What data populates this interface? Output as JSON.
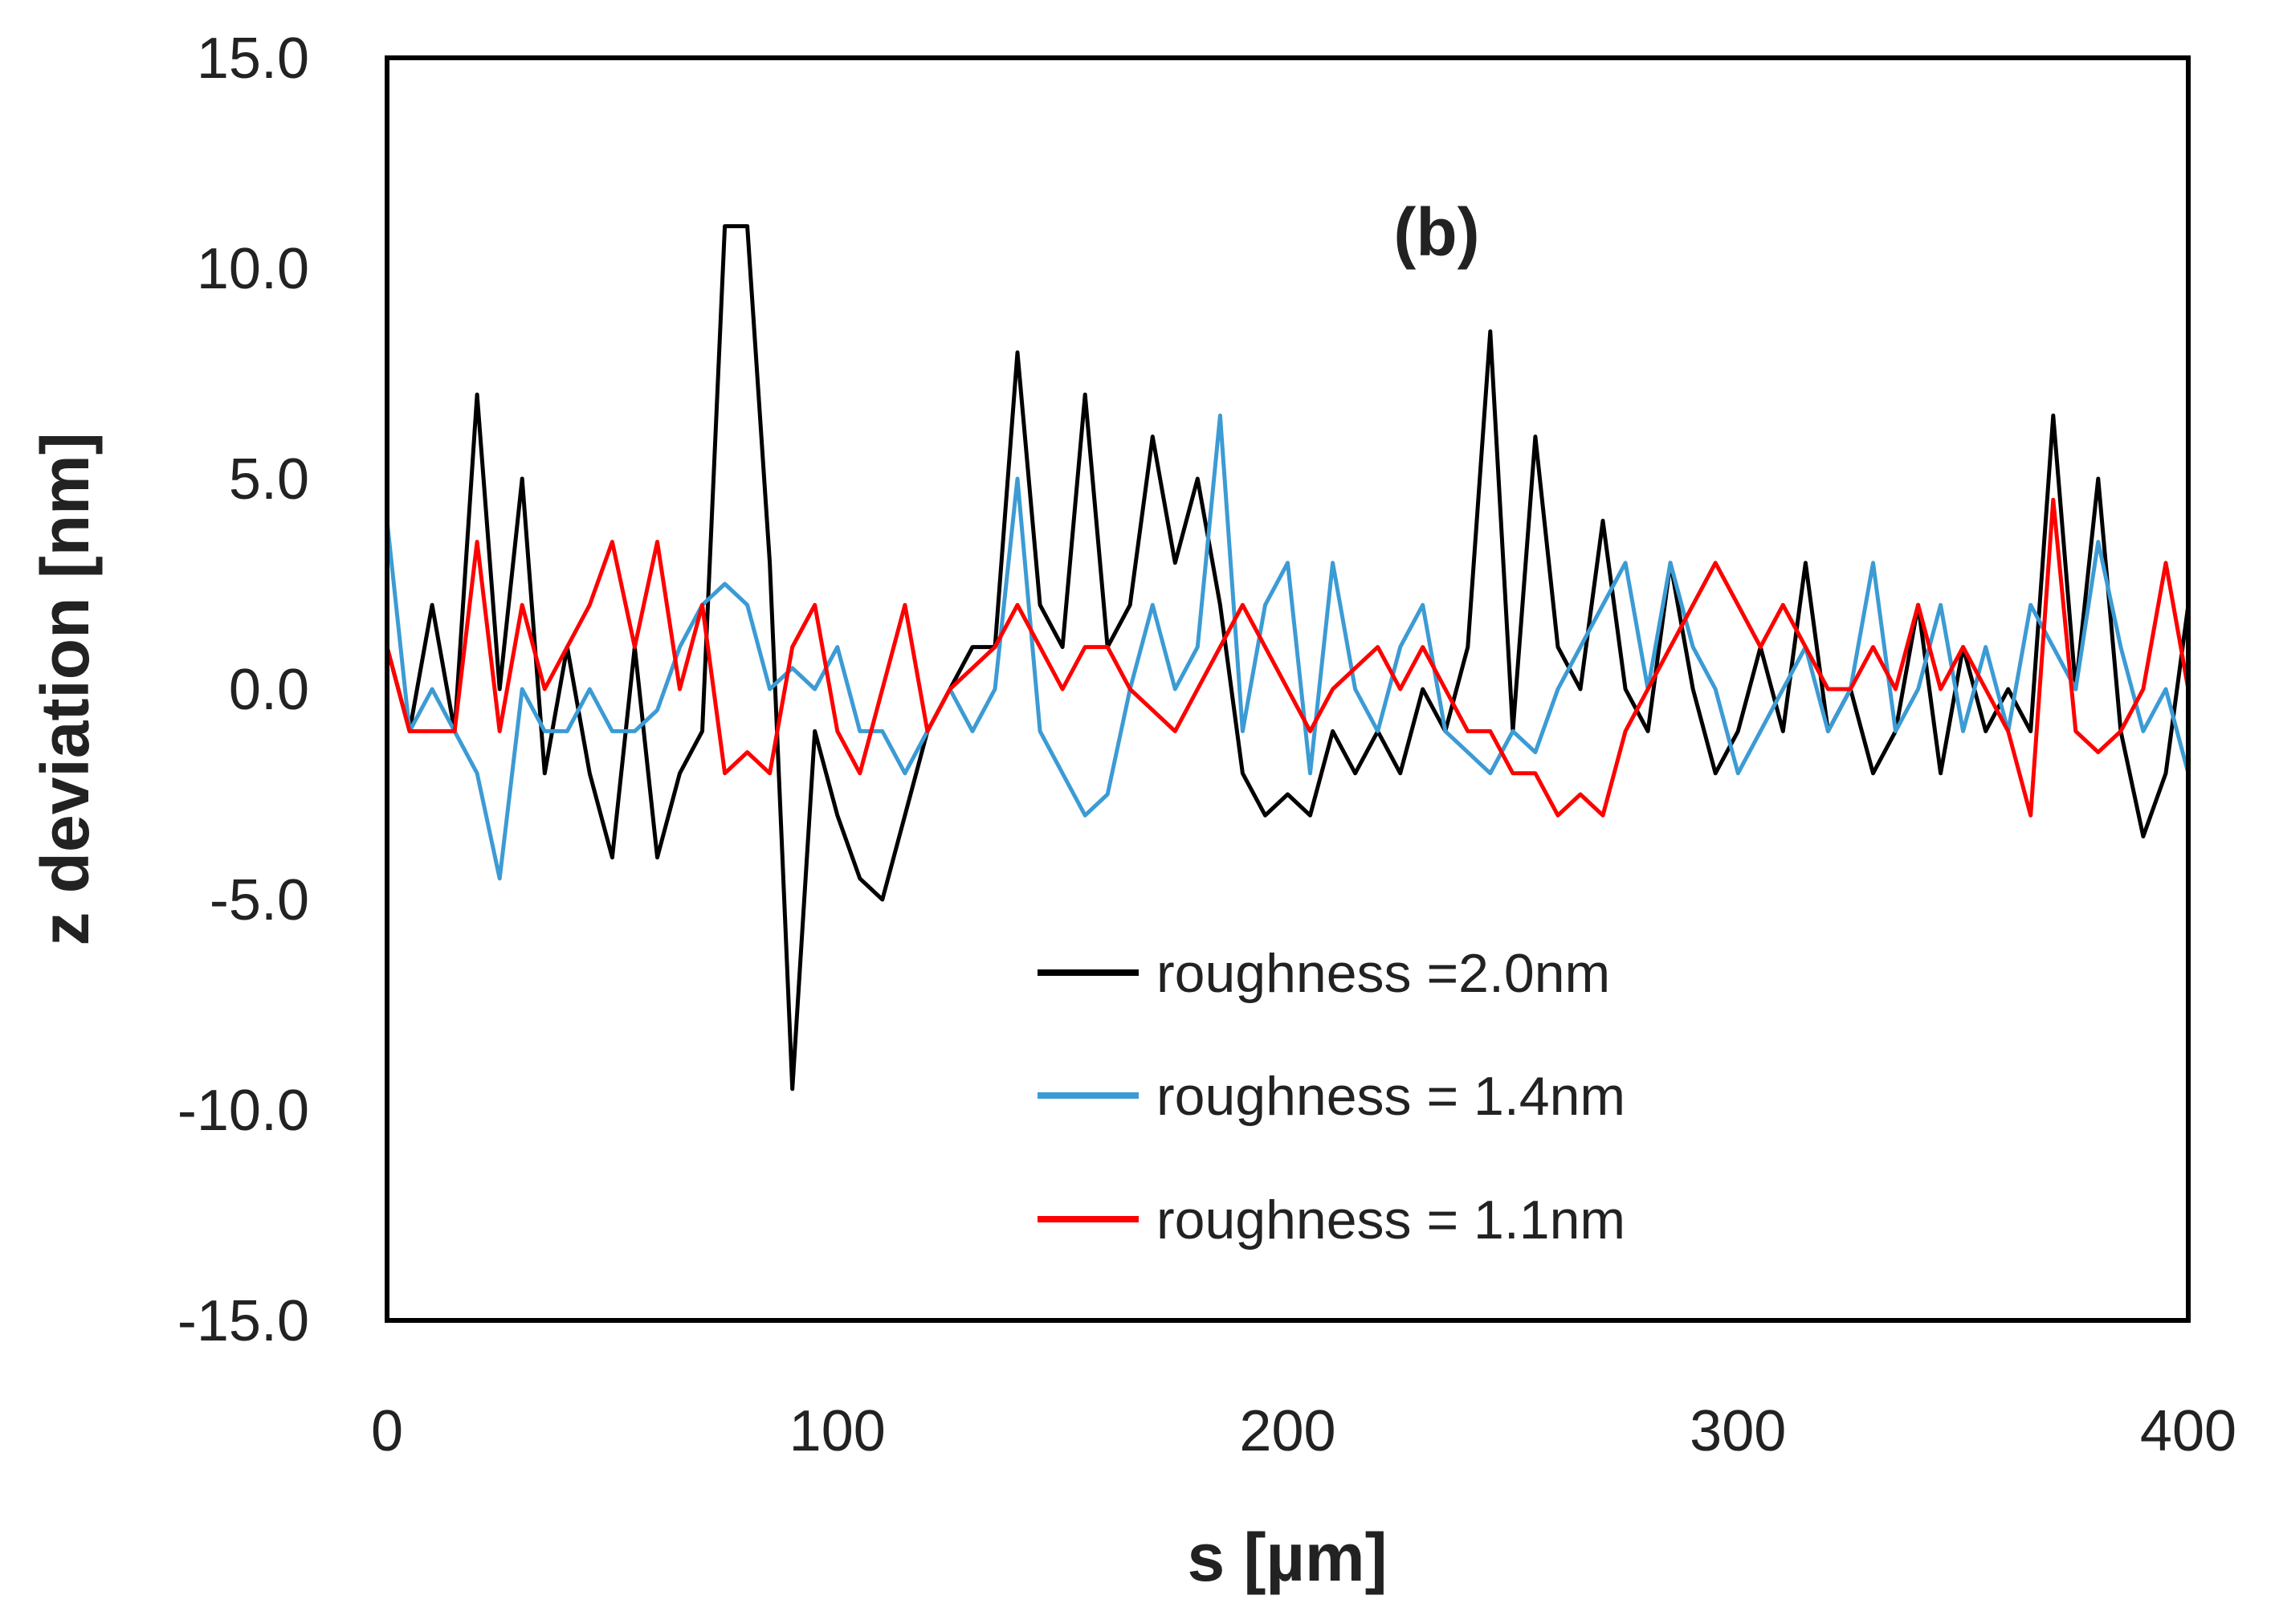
{
  "chart_data": {
    "type": "line",
    "annotation": "(b)",
    "xlabel": "s [µm]",
    "ylabel": "z deviation [nm]",
    "xlim": [
      0,
      400
    ],
    "ylim": [
      -15,
      15
    ],
    "xticks": [
      0,
      100,
      200,
      300,
      400
    ],
    "yticks": [
      {
        "value": -15,
        "label": "-15.0"
      },
      {
        "value": -10,
        "label": "-10.0"
      },
      {
        "value": -5,
        "label": "-5.0"
      },
      {
        "value": 0,
        "label": "0.0"
      },
      {
        "value": 5,
        "label": "5.0"
      },
      {
        "value": 10,
        "label": "10.0"
      },
      {
        "value": 15,
        "label": "15.0"
      }
    ],
    "grid": false,
    "x": [
      0,
      5,
      10,
      15,
      20,
      25,
      30,
      35,
      40,
      45,
      50,
      55,
      60,
      65,
      70,
      75,
      80,
      85,
      90,
      95,
      100,
      105,
      110,
      115,
      120,
      125,
      130,
      135,
      140,
      145,
      150,
      155,
      160,
      165,
      170,
      175,
      180,
      185,
      190,
      195,
      200,
      205,
      210,
      215,
      220,
      225,
      230,
      235,
      240,
      245,
      250,
      255,
      260,
      265,
      270,
      275,
      280,
      285,
      290,
      295,
      300,
      305,
      310,
      315,
      320,
      325,
      330,
      335,
      340,
      345,
      350,
      355,
      360,
      365,
      370,
      375,
      380,
      385,
      390,
      395,
      400
    ],
    "series": [
      {
        "name": "roughness =2.0nm",
        "color": "#000000",
        "values": [
          1,
          -1,
          2,
          -1,
          7,
          0,
          5,
          -2,
          1,
          -2,
          -4,
          1,
          -4,
          -2,
          -1,
          11,
          11,
          3,
          -9.5,
          -1,
          -3,
          -4.5,
          -5,
          -3,
          -1,
          0,
          1,
          1,
          8,
          2,
          1,
          7,
          1,
          2,
          6,
          3,
          5,
          2,
          -2,
          -3,
          -2.5,
          -3,
          -1,
          -2,
          -1,
          -2,
          0,
          -1,
          1,
          8.5,
          -1,
          6,
          1,
          0,
          4,
          0,
          -1,
          3,
          0,
          -2,
          -1,
          1,
          -1,
          3,
          -1,
          0,
          -2,
          -1,
          2,
          -2,
          1,
          -1,
          0,
          -1,
          6.5,
          0,
          5,
          -1,
          -3.5,
          -2,
          2
        ]
      },
      {
        "name": "roughness = 1.4nm",
        "color": "#3c9bd4",
        "values": [
          4,
          -1,
          0,
          -1,
          -2,
          -4.5,
          0,
          -1,
          -1,
          0,
          -1,
          -1,
          -0.5,
          1,
          2,
          2.5,
          2,
          0,
          0.5,
          0,
          1,
          -1,
          -1,
          -2,
          -1,
          0,
          -1,
          0,
          5,
          -1,
          -2,
          -3,
          -2.5,
          0,
          2,
          0,
          1,
          6.5,
          -1,
          2,
          3,
          -2,
          3,
          0,
          -1,
          1,
          2,
          -1,
          -1.5,
          -2,
          -1,
          -1.5,
          0,
          1,
          2,
          3,
          0,
          3,
          1,
          0,
          -2,
          -1,
          0,
          1,
          -1,
          0,
          3,
          -1,
          0,
          2,
          -1,
          1,
          -1,
          2,
          1,
          0,
          3.5,
          1,
          -1,
          0,
          -2
        ]
      },
      {
        "name": "roughness = 1.1nm",
        "color": "#ff0000",
        "values": [
          1,
          -1,
          -1,
          -1,
          3.5,
          -1,
          2,
          0,
          1,
          2,
          3.5,
          1,
          3.5,
          0,
          2,
          -2,
          -1.5,
          -2,
          1,
          2,
          -1,
          -2,
          0,
          2,
          -1,
          0,
          0.5,
          1,
          2,
          1,
          0,
          1,
          1,
          0,
          -0.5,
          -1,
          0,
          1,
          2,
          1,
          0,
          -1,
          0,
          0.5,
          1,
          0,
          1,
          0,
          -1,
          -1,
          -2,
          -2,
          -3,
          -2.5,
          -3,
          -1,
          0,
          1,
          2,
          3,
          2,
          1,
          2,
          1,
          0,
          0,
          1,
          0,
          2,
          0,
          1,
          0,
          -1,
          -3,
          4.5,
          -1,
          -1.5,
          -1,
          0,
          3,
          0
        ]
      }
    ]
  }
}
